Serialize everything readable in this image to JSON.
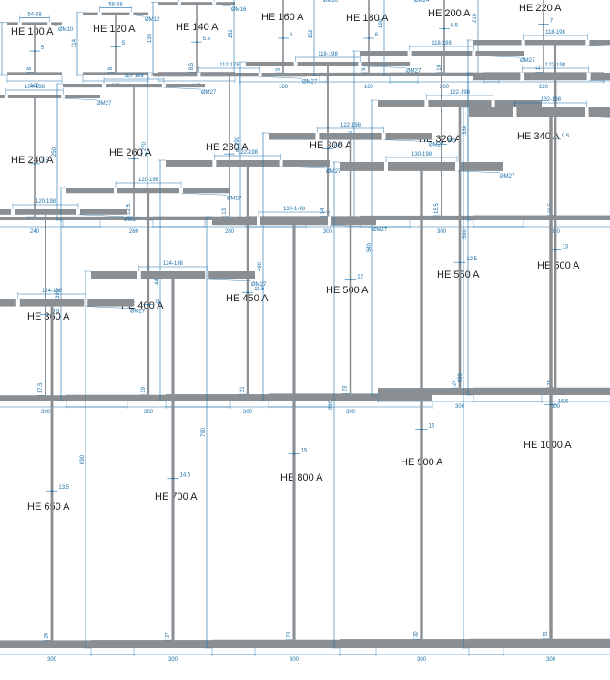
{
  "colors": {
    "steel": "#8a8f94",
    "dimension": "#1a6fa8",
    "title": "#222222"
  },
  "profiles": [
    {
      "name": "HE 100 A",
      "h": "96",
      "b": "100",
      "tf": "8",
      "tw": "5",
      "gauge": "54-58",
      "bolt": "ØM10"
    },
    {
      "name": "HE 120 A",
      "h": "114",
      "b": "120",
      "tf": "8",
      "tw": "5",
      "gauge": "58-68",
      "bolt": "ØM12"
    },
    {
      "name": "HE 140 A",
      "h": "133",
      "b": "140",
      "tf": "8.5",
      "tw": "5.5",
      "gauge": "64-76",
      "bolt": "ØM16"
    },
    {
      "name": "HE 160 A",
      "h": "152",
      "b": "160",
      "tf": "9",
      "tw": "6",
      "gauge": "78-84",
      "bolt": "ØM20"
    },
    {
      "name": "HE 180 A",
      "h": "152",
      "b": "180",
      "tf": "9.5",
      "tw": "6",
      "gauge": "86-92",
      "bolt": "ØM24"
    },
    {
      "name": "HE 200 A",
      "h": "190",
      "b": "200",
      "tf": "10",
      "tw": "6.5",
      "gauge": "98-100",
      "bolt": "ØM27"
    },
    {
      "name": "HE 220 A",
      "h": "210",
      "b": "220",
      "tf": "11",
      "tw": "7",
      "gauge": "98-118",
      "bolt": "ØM27"
    },
    {
      "name": "HE 240 A",
      "h": "230",
      "b": "240",
      "tf": "12",
      "tw": "7.5",
      "gauge": "104-138",
      "bolt": "ØM27"
    },
    {
      "name": "HE 260 A",
      "h": "250",
      "b": "260",
      "tf": "12.5",
      "tw": "7.5",
      "gauge": "110-158",
      "bolt": "ØM27"
    },
    {
      "name": "HE 280 A",
      "h": "270",
      "b": "280",
      "tf": "13",
      "tw": "8",
      "gauge": "112-178",
      "bolt": "ØM27"
    },
    {
      "name": "HE 300 A",
      "h": "290",
      "b": "300",
      "tf": "14",
      "tw": "8.5",
      "gauge": "118-198",
      "bolt": "ØM27"
    },
    {
      "name": "HE 320 A",
      "h": "310",
      "b": "300",
      "tf": "15.5",
      "tw": "9.5",
      "gauge": "118-198",
      "bolt": "ØM27"
    },
    {
      "name": "HE 340 A",
      "h": "330",
      "b": "300",
      "tf": "16.5",
      "tw": "9.5",
      "gauge": "118-198",
      "bolt": "ØM27"
    },
    {
      "name": "HE 360 A",
      "h": "350",
      "b": "300",
      "tf": "17.5",
      "tw": "9.5",
      "gauge": "120-198",
      "bolt": "ØM27"
    },
    {
      "name": "HE 400 A",
      "h": "390",
      "b": "300",
      "tf": "19",
      "tw": "11",
      "gauge": "120-198",
      "bolt": "ØM27"
    },
    {
      "name": "HE 450 A",
      "h": "440",
      "b": "300",
      "tf": "21",
      "tw": "11.5",
      "gauge": "122-198",
      "bolt": "ØM27"
    },
    {
      "name": "HE 500 A",
      "h": "490",
      "b": "300",
      "tf": "23",
      "tw": "12",
      "gauge": "122-198",
      "bolt": "ØM27"
    },
    {
      "name": "HE 550 A",
      "h": "540",
      "b": "300",
      "tf": "24",
      "tw": "12.5",
      "gauge": "122-198",
      "bolt": "ØM27"
    },
    {
      "name": "HE 600 A",
      "h": "590",
      "b": "300",
      "tf": "25",
      "tw": "13",
      "gauge": "122-198",
      "bolt": "ØM27"
    },
    {
      "name": "HE 650 A",
      "h": "640",
      "b": "300",
      "tf": "26",
      "tw": "13.5",
      "gauge": "124-198",
      "bolt": "ØM27"
    },
    {
      "name": "HE 700 A",
      "h": "690",
      "b": "300",
      "tf": "27",
      "tw": "14.5",
      "gauge": "124-198",
      "bolt": "ØM27"
    },
    {
      "name": "HE 800 A",
      "h": "790",
      "b": "300",
      "tf": "28",
      "tw": "15",
      "gauge": "130-1-98",
      "bolt": "ØM27"
    },
    {
      "name": "HE 900 A",
      "h": "890",
      "b": "300",
      "tf": "30",
      "tw": "16",
      "gauge": "130-198",
      "bolt": "ØM27"
    },
    {
      "name": "HE 1000 A",
      "h": "990",
      "b": "300",
      "tf": "31",
      "tw": "16.5",
      "gauge": "132-198",
      "bolt": "ØM27"
    }
  ]
}
